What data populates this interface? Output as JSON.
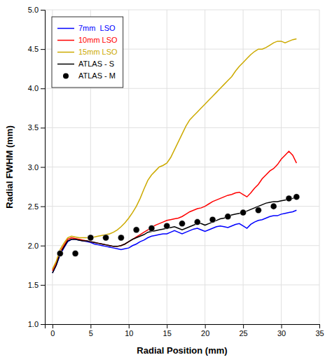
{
  "chart_data": {
    "type": "line",
    "xlabel": "Radial Position (mm)",
    "ylabel": "Radial FWHM (mm)",
    "xlim": [
      -1,
      35
    ],
    "ylim": [
      1,
      5
    ],
    "xticks": [
      0,
      5,
      10,
      15,
      20,
      25,
      30,
      35
    ],
    "yticks": [
      {
        "value": 1,
        "label": "1.0"
      },
      1.5,
      {
        "value": 2,
        "label": "2.0"
      },
      2.5,
      {
        "value": 3,
        "label": "3.0"
      },
      3.5,
      {
        "value": 4,
        "label": "4.0"
      },
      4.5,
      {
        "value": 5,
        "label": "5.0"
      }
    ],
    "grid": true,
    "legend": "upper left",
    "series": [
      {
        "name": "7mm  LSO",
        "type": "line",
        "color": "#0000ff",
        "x": [
          0,
          0.5,
          1,
          1.5,
          2,
          2.5,
          3,
          3.5,
          4,
          4.5,
          5,
          5.5,
          6,
          6.5,
          7,
          7.5,
          8,
          8.5,
          9,
          9.5,
          10,
          10.5,
          11,
          11.5,
          12,
          12.5,
          13,
          13.5,
          14,
          14.5,
          15,
          15.5,
          16,
          16.5,
          17,
          17.5,
          18,
          18.5,
          19,
          19.5,
          20,
          20.5,
          21,
          21.5,
          22,
          22.5,
          23,
          23.5,
          24,
          24.5,
          25,
          25.5,
          26,
          26.5,
          27,
          27.5,
          28,
          28.5,
          29,
          29.5,
          30,
          30.5,
          31,
          31.5,
          32
        ],
        "values": [
          1.65,
          1.75,
          1.88,
          1.97,
          2.05,
          2.08,
          2.08,
          2.07,
          2.06,
          2.05,
          2.04,
          2.02,
          2.01,
          2.0,
          1.99,
          1.98,
          1.97,
          1.96,
          1.95,
          1.96,
          1.97,
          2.0,
          2.02,
          2.05,
          2.07,
          2.1,
          2.12,
          2.13,
          2.14,
          2.15,
          2.15,
          2.17,
          2.19,
          2.17,
          2.15,
          2.17,
          2.19,
          2.21,
          2.22,
          2.2,
          2.18,
          2.2,
          2.22,
          2.24,
          2.25,
          2.24,
          2.23,
          2.25,
          2.27,
          2.28,
          2.25,
          2.22,
          2.27,
          2.3,
          2.32,
          2.33,
          2.35,
          2.37,
          2.38,
          2.38,
          2.4,
          2.41,
          2.42,
          2.43,
          2.45
        ]
      },
      {
        "name": "10mm LSO",
        "type": "line",
        "color": "#ff0000",
        "x": [
          0,
          0.5,
          1,
          1.5,
          2,
          2.5,
          3,
          3.5,
          4,
          4.5,
          5,
          5.5,
          6,
          6.5,
          7,
          7.5,
          8,
          8.5,
          9,
          9.5,
          10,
          10.5,
          11,
          11.5,
          12,
          12.5,
          13,
          13.5,
          14,
          14.5,
          15,
          15.5,
          16,
          16.5,
          17,
          17.5,
          18,
          18.5,
          19,
          19.5,
          20,
          20.5,
          21,
          21.5,
          22,
          22.5,
          23,
          23.5,
          24,
          24.5,
          25,
          25.5,
          26,
          26.5,
          27,
          27.5,
          28,
          28.5,
          29,
          29.5,
          30,
          30.5,
          31,
          31.5,
          32
        ],
        "values": [
          1.68,
          1.78,
          1.92,
          2.0,
          2.08,
          2.1,
          2.09,
          2.08,
          2.07,
          2.06,
          2.05,
          2.04,
          2.03,
          2.02,
          2.01,
          2.0,
          1.99,
          1.99,
          2.0,
          2.02,
          2.05,
          2.08,
          2.11,
          2.14,
          2.17,
          2.2,
          2.23,
          2.26,
          2.28,
          2.3,
          2.32,
          2.33,
          2.34,
          2.35,
          2.37,
          2.4,
          2.43,
          2.45,
          2.47,
          2.48,
          2.5,
          2.53,
          2.56,
          2.58,
          2.6,
          2.62,
          2.64,
          2.65,
          2.67,
          2.68,
          2.65,
          2.62,
          2.67,
          2.73,
          2.78,
          2.85,
          2.9,
          2.95,
          2.98,
          3.03,
          3.1,
          3.15,
          3.2,
          3.15,
          3.05
        ]
      },
      {
        "name": "15mm LSO",
        "type": "line",
        "color": "#ccaa00",
        "x": [
          0,
          0.5,
          1,
          1.5,
          2,
          2.5,
          3,
          3.5,
          4,
          4.5,
          5,
          5.5,
          6,
          6.5,
          7,
          7.5,
          8,
          8.5,
          9,
          9.5,
          10,
          10.5,
          11,
          11.5,
          12,
          12.5,
          13,
          13.5,
          14,
          14.5,
          15,
          15.5,
          16,
          16.5,
          17,
          17.5,
          18,
          18.5,
          19,
          19.5,
          20,
          20.5,
          21,
          21.5,
          22,
          22.5,
          23,
          23.5,
          24,
          24.5,
          25,
          25.5,
          26,
          26.5,
          27,
          27.5,
          28,
          28.5,
          29,
          29.5,
          30,
          30.5,
          31,
          31.5,
          32
        ],
        "values": [
          1.7,
          1.8,
          1.95,
          2.03,
          2.1,
          2.12,
          2.11,
          2.1,
          2.1,
          2.1,
          2.1,
          2.11,
          2.12,
          2.13,
          2.14,
          2.15,
          2.17,
          2.2,
          2.24,
          2.29,
          2.35,
          2.42,
          2.5,
          2.6,
          2.72,
          2.83,
          2.9,
          2.95,
          3.0,
          3.02,
          3.05,
          3.12,
          3.22,
          3.32,
          3.42,
          3.52,
          3.6,
          3.65,
          3.7,
          3.75,
          3.8,
          3.85,
          3.9,
          3.95,
          4.0,
          4.05,
          4.1,
          4.15,
          4.22,
          4.28,
          4.33,
          4.38,
          4.43,
          4.47,
          4.5,
          4.5,
          4.52,
          4.55,
          4.58,
          4.6,
          4.6,
          4.58,
          4.6,
          4.62,
          4.63
        ]
      },
      {
        "name": "ATLAS - S",
        "type": "line",
        "color": "#000000",
        "x": [
          0,
          0.5,
          1,
          1.5,
          2,
          2.5,
          3,
          3.5,
          4,
          4.5,
          5,
          5.5,
          6,
          6.5,
          7,
          7.5,
          8,
          8.5,
          9,
          9.5,
          10,
          10.5,
          11,
          11.5,
          12,
          12.5,
          13,
          13.5,
          14,
          14.5,
          15,
          15.5,
          16,
          16.5,
          17,
          17.5,
          18,
          18.5,
          19,
          19.5,
          20,
          20.5,
          21,
          21.5,
          22,
          22.5,
          23,
          23.5,
          24,
          24.5,
          25,
          25.5,
          26,
          26.5,
          27,
          27.5,
          28,
          28.5,
          29,
          29.5,
          30,
          30.5,
          31,
          31.5,
          32
        ],
        "values": [
          1.65,
          1.75,
          1.9,
          1.98,
          2.06,
          2.08,
          2.08,
          2.07,
          2.06,
          2.06,
          2.05,
          2.04,
          2.03,
          2.02,
          2.01,
          2.0,
          1.99,
          1.99,
          2.0,
          2.02,
          2.05,
          2.08,
          2.1,
          2.12,
          2.14,
          2.17,
          2.18,
          2.19,
          2.2,
          2.21,
          2.22,
          2.23,
          2.24,
          2.22,
          2.2,
          2.22,
          2.24,
          2.26,
          2.28,
          2.28,
          2.26,
          2.28,
          2.3,
          2.32,
          2.34,
          2.35,
          2.37,
          2.39,
          2.4,
          2.41,
          2.42,
          2.44,
          2.46,
          2.48,
          2.5,
          2.52,
          2.54,
          2.55,
          2.56,
          2.56,
          2.57,
          2.58,
          2.59,
          2.6,
          2.62
        ]
      },
      {
        "name": "ATLAS - M",
        "type": "scatter",
        "marker": "circle",
        "color": "#000000",
        "x": [
          1,
          3,
          5,
          7,
          9,
          11,
          13,
          15,
          17,
          19,
          21,
          23,
          25,
          27,
          29,
          31,
          32
        ],
        "values": [
          1.9,
          1.9,
          2.1,
          2.1,
          2.1,
          2.2,
          2.22,
          2.25,
          2.28,
          2.3,
          2.33,
          2.37,
          2.42,
          2.45,
          2.5,
          2.6,
          2.62
        ]
      }
    ]
  }
}
